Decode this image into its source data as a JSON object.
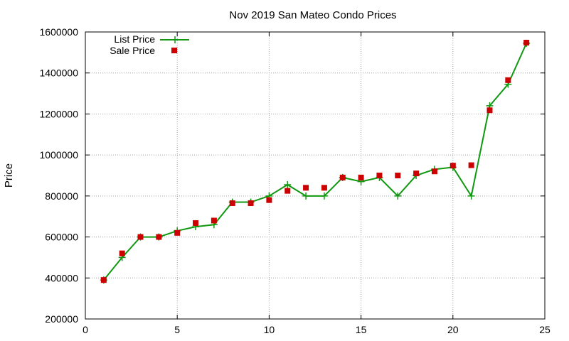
{
  "chart_data": {
    "type": "line",
    "title": "Nov 2019 San Mateo Condo Prices",
    "xlabel": "",
    "ylabel": "Price",
    "xlim": [
      0,
      25
    ],
    "ylim": [
      200000,
      1600000
    ],
    "xticks": [
      "0",
      "5",
      "10",
      "15",
      "20",
      "25"
    ],
    "xtick_values": [
      0,
      5,
      10,
      15,
      20,
      25
    ],
    "yticks": [
      "200000",
      "400000",
      "600000",
      "800000",
      "1000000",
      "1200000",
      "1400000",
      "1600000"
    ],
    "ytick_values": [
      200000,
      400000,
      600000,
      800000,
      1000000,
      1200000,
      1400000,
      1600000
    ],
    "grid": true,
    "legend_position": "top-left",
    "series": [
      {
        "name": "List Price",
        "style": "line-with-plus-markers",
        "color": "#109910",
        "x": [
          1,
          2,
          3,
          4,
          5,
          6,
          7,
          8,
          9,
          10,
          11,
          12,
          13,
          14,
          15,
          16,
          17,
          18,
          19,
          20,
          21,
          22,
          23,
          24
        ],
        "y": [
          390000,
          500000,
          600000,
          600000,
          630000,
          650000,
          660000,
          770000,
          770000,
          800000,
          855000,
          800000,
          800000,
          890000,
          870000,
          890000,
          800000,
          900000,
          930000,
          940000,
          800000,
          1240000,
          1345000,
          1545000
        ]
      },
      {
        "name": "Sale Price",
        "style": "square-markers",
        "color": "#cc0000",
        "x": [
          1,
          2,
          3,
          4,
          5,
          6,
          7,
          8,
          9,
          10,
          11,
          12,
          13,
          14,
          15,
          16,
          17,
          18,
          19,
          20,
          21,
          22,
          23,
          24
        ],
        "y": [
          390000,
          520000,
          600000,
          600000,
          620000,
          668000,
          680000,
          765000,
          765000,
          780000,
          825000,
          840000,
          840000,
          890000,
          890000,
          900000,
          900000,
          910000,
          920000,
          948000,
          950000,
          1218000,
          1365000,
          1548000
        ]
      }
    ]
  }
}
